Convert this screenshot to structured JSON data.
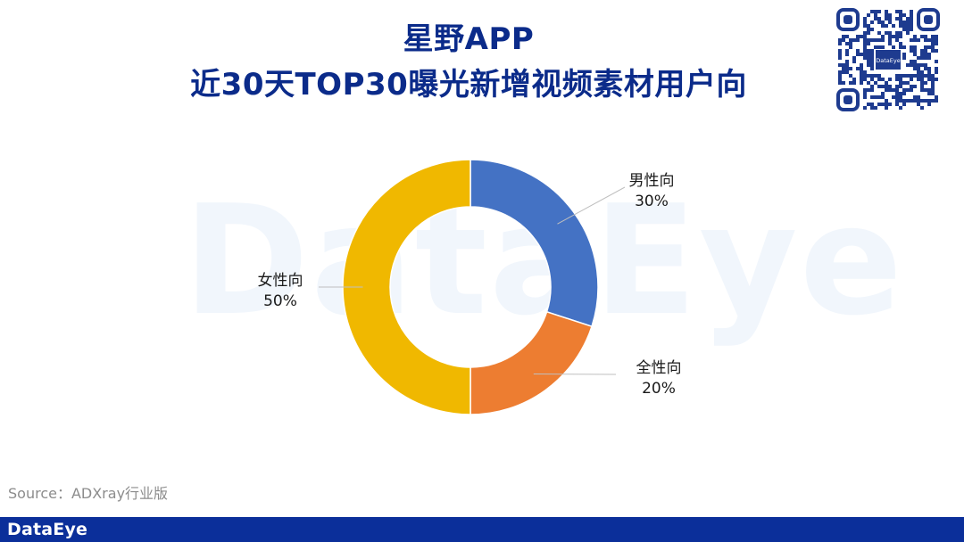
{
  "title_line1": "星野APP",
  "title_line2": "近30天TOP30曝光新增视频素材用户向",
  "watermark": "DataEye",
  "qr_brand": "DataEye",
  "source": "Source：ADXray行业版",
  "footer_brand": "DataEye",
  "chart_data": {
    "type": "pie",
    "title": "近30天TOP30曝光新增视频素材用户向",
    "donut": true,
    "categories": [
      "男性向",
      "全性向",
      "女性向"
    ],
    "values": [
      30,
      20,
      50
    ],
    "value_labels": [
      "30%",
      "20%",
      "50%"
    ],
    "colors": [
      "#4472c4",
      "#ed7d31",
      "#f0b800"
    ],
    "start_angle": "12 o'clock",
    "direction": "clockwise"
  }
}
